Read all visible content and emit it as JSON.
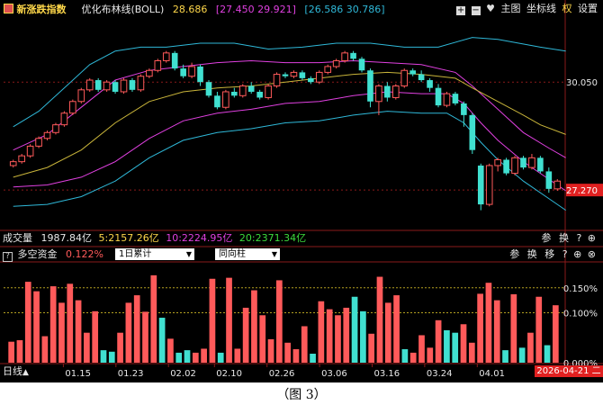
{
  "colors": {
    "up": "#ff5a5a",
    "down": "#40e0d0",
    "upper_band": "#2fb8d8",
    "mid_band": "#c8b43a",
    "lower_band": "#e040e0",
    "ma5": "#ffd84a",
    "ma10": "#e040e0",
    "ma20": "#3cdc3c",
    "dash_ref": "#b4a020",
    "grid_red": "#8a1a1a",
    "text_white": "#e8e8e8",
    "text_gray": "#c8c8c8"
  },
  "header": {
    "index_name": "新涨跌指数",
    "indicator": "优化布林线(BOLL)",
    "mid_value": "28.686",
    "upper_value": "[27.450 29.921]",
    "lower_value": "[26.586 30.786]",
    "tools": [
      "主图",
      "坐标线",
      "权",
      "设置"
    ],
    "tool_icons": [
      "plus-icon",
      "minus-icon",
      "heart-icon"
    ]
  },
  "volume_bar": {
    "label": "成交量",
    "value": "1987.84亿",
    "ma5": "5:2157.26亿",
    "ma10": "10:2224.95亿",
    "ma20": "20:2371.34亿",
    "tools": [
      "参",
      "换"
    ]
  },
  "sub_panel": {
    "title": "多空资金",
    "value": "0.122%",
    "select1": "1日累计",
    "select2": "同向柱",
    "tools": [
      "参",
      "换",
      "移"
    ],
    "y_ticks": [
      "0.150%",
      "0.100%",
      "0.000%"
    ]
  },
  "axis": {
    "period": "日线",
    "dates": [
      "01.15",
      "01.23",
      "02.02",
      "02.10",
      "02.26",
      "03.06",
      "03.16",
      "03.24",
      "04.01"
    ],
    "current_date": "2026-04-21 二",
    "y_labels": [
      "30.050",
      "27.270"
    ]
  },
  "caption": "（图 3）",
  "chart_data": [
    {
      "type": "candlestick",
      "title": "新涨跌指数 优化布林线(BOLL)",
      "ylim": [
        26.3,
        31.7
      ],
      "y_ticks": [
        30.05,
        27.27
      ],
      "candles": [
        [
          27.9,
          28.0,
          27.85,
          28.05
        ],
        [
          28.0,
          28.15,
          27.95,
          28.2
        ],
        [
          28.15,
          28.4,
          28.1,
          28.45
        ],
        [
          28.4,
          28.6,
          28.35,
          28.65
        ],
        [
          28.6,
          28.75,
          28.55,
          28.8
        ],
        [
          28.75,
          28.95,
          28.7,
          29.0
        ],
        [
          28.95,
          29.25,
          28.9,
          29.3
        ],
        [
          29.25,
          29.55,
          29.2,
          29.6
        ],
        [
          29.55,
          29.85,
          29.5,
          29.9
        ],
        [
          29.85,
          30.1,
          29.8,
          30.15
        ],
        [
          30.1,
          29.85,
          29.8,
          30.15
        ],
        [
          29.85,
          30.05,
          29.8,
          30.1
        ],
        [
          30.05,
          29.8,
          29.75,
          30.1
        ],
        [
          29.8,
          30.1,
          29.75,
          30.15
        ],
        [
          30.1,
          29.85,
          29.8,
          30.15
        ],
        [
          29.85,
          30.2,
          29.8,
          30.25
        ],
        [
          30.2,
          30.35,
          30.15,
          30.4
        ],
        [
          30.35,
          30.6,
          30.3,
          30.65
        ],
        [
          30.6,
          30.8,
          30.55,
          30.85
        ],
        [
          30.8,
          30.4,
          30.35,
          30.85
        ],
        [
          30.4,
          30.2,
          30.15,
          30.5
        ],
        [
          30.2,
          30.45,
          30.15,
          30.55
        ],
        [
          30.45,
          30.05,
          29.95,
          30.5
        ],
        [
          30.05,
          29.7,
          29.65,
          30.1
        ],
        [
          29.7,
          29.4,
          29.35,
          29.8
        ],
        [
          29.4,
          29.8,
          29.35,
          29.85
        ],
        [
          29.8,
          29.7,
          29.65,
          29.9
        ],
        [
          29.7,
          29.95,
          29.65,
          30.0
        ],
        [
          29.95,
          29.8,
          29.75,
          30.05
        ],
        [
          29.8,
          29.65,
          29.6,
          29.85
        ],
        [
          29.65,
          29.95,
          29.6,
          30.0
        ],
        [
          29.95,
          30.25,
          29.9,
          30.3
        ],
        [
          30.25,
          30.2,
          30.15,
          30.3
        ],
        [
          30.2,
          30.3,
          30.15,
          30.35
        ],
        [
          30.3,
          30.15,
          30.1,
          30.35
        ],
        [
          30.15,
          30.05,
          30.0,
          30.2
        ],
        [
          30.05,
          30.3,
          30.0,
          30.35
        ],
        [
          30.3,
          30.45,
          30.25,
          30.5
        ],
        [
          30.45,
          30.6,
          30.4,
          30.65
        ],
        [
          30.6,
          30.8,
          30.55,
          30.85
        ],
        [
          30.8,
          30.65,
          30.6,
          30.85
        ],
        [
          30.65,
          30.35,
          30.3,
          30.7
        ],
        [
          30.35,
          29.55,
          29.4,
          30.4
        ],
        [
          29.55,
          29.95,
          29.2,
          30.0
        ],
        [
          29.95,
          29.65,
          29.55,
          30.05
        ],
        [
          29.65,
          29.95,
          29.6,
          30.0
        ],
        [
          29.95,
          30.35,
          29.9,
          30.4
        ],
        [
          30.35,
          30.25,
          30.2,
          30.4
        ],
        [
          30.25,
          30.1,
          30.05,
          30.35
        ],
        [
          30.1,
          29.9,
          29.8,
          30.15
        ],
        [
          29.9,
          29.45,
          29.4,
          30.0
        ],
        [
          29.45,
          29.75,
          29.4,
          29.8
        ],
        [
          29.75,
          29.5,
          29.45,
          29.8
        ],
        [
          29.5,
          29.2,
          28.9,
          29.55
        ],
        [
          29.2,
          28.3,
          28.2,
          29.25
        ],
        [
          27.9,
          26.9,
          26.75,
          27.95
        ],
        [
          26.9,
          27.9,
          26.85,
          27.95
        ],
        [
          27.9,
          28.05,
          27.75,
          28.1
        ],
        [
          28.05,
          27.7,
          27.65,
          28.1
        ],
        [
          27.7,
          28.1,
          27.65,
          28.15
        ],
        [
          28.1,
          27.85,
          27.8,
          28.15
        ],
        [
          27.85,
          28.1,
          27.8,
          28.2
        ],
        [
          28.1,
          27.75,
          27.7,
          28.15
        ],
        [
          27.75,
          27.3,
          27.2,
          27.85
        ],
        [
          27.3,
          27.5,
          27.25,
          27.55
        ]
      ],
      "boll_upper": [
        [
          0,
          28.9
        ],
        [
          3,
          29.3
        ],
        [
          6,
          29.9
        ],
        [
          9,
          30.5
        ],
        [
          12,
          30.85
        ],
        [
          15,
          30.95
        ],
        [
          18,
          30.95
        ],
        [
          22,
          31.05
        ],
        [
          26,
          31.05
        ],
        [
          30,
          30.9
        ],
        [
          34,
          30.95
        ],
        [
          38,
          31.05
        ],
        [
          42,
          31.05
        ],
        [
          46,
          30.95
        ],
        [
          50,
          30.95
        ],
        [
          54,
          31.2
        ],
        [
          57,
          31.15
        ],
        [
          62,
          30.95
        ],
        [
          65,
          30.85
        ]
      ],
      "boll_mid": [
        [
          0,
          27.6
        ],
        [
          4,
          27.85
        ],
        [
          8,
          28.3
        ],
        [
          12,
          29.0
        ],
        [
          16,
          29.55
        ],
        [
          20,
          29.8
        ],
        [
          24,
          29.9
        ],
        [
          28,
          29.95
        ],
        [
          32,
          30.05
        ],
        [
          36,
          30.15
        ],
        [
          40,
          30.25
        ],
        [
          44,
          30.3
        ],
        [
          48,
          30.25
        ],
        [
          52,
          30.15
        ],
        [
          54,
          29.9
        ],
        [
          57,
          29.55
        ],
        [
          60,
          29.2
        ],
        [
          62,
          28.95
        ],
        [
          65,
          28.7
        ]
      ],
      "boll_lower": [
        [
          0,
          27.35
        ],
        [
          4,
          27.4
        ],
        [
          8,
          27.6
        ],
        [
          12,
          28.0
        ],
        [
          16,
          28.6
        ],
        [
          20,
          29.05
        ],
        [
          24,
          29.25
        ],
        [
          28,
          29.35
        ],
        [
          32,
          29.5
        ],
        [
          36,
          29.55
        ],
        [
          40,
          29.7
        ],
        [
          44,
          29.8
        ],
        [
          48,
          29.75
        ],
        [
          51,
          29.75
        ],
        [
          53,
          29.5
        ],
        [
          55,
          29.0
        ],
        [
          57,
          28.55
        ],
        [
          60,
          28.0
        ],
        [
          63,
          27.55
        ],
        [
          65,
          27.25
        ]
      ],
      "boll_inner_upper": [
        [
          0,
          28.3
        ],
        [
          4,
          28.7
        ],
        [
          8,
          29.4
        ],
        [
          12,
          30.1
        ],
        [
          16,
          30.35
        ],
        [
          20,
          30.45
        ],
        [
          24,
          30.55
        ],
        [
          28,
          30.6
        ],
        [
          32,
          30.55
        ],
        [
          36,
          30.55
        ],
        [
          40,
          30.6
        ],
        [
          44,
          30.55
        ],
        [
          48,
          30.5
        ],
        [
          52,
          30.3
        ],
        [
          54,
          29.95
        ],
        [
          57,
          29.35
        ],
        [
          60,
          28.75
        ],
        [
          63,
          28.35
        ],
        [
          65,
          28.1
        ]
      ]
    },
    {
      "type": "bar",
      "title": "多空资金",
      "ylim": [
        0.0,
        0.2
      ],
      "y_ticks": [
        0.15,
        0.1,
        0.0
      ],
      "values": [
        0.042,
        0.045,
        0.162,
        0.143,
        0.053,
        0.153,
        0.12,
        0.158,
        0.125,
        0.06,
        0.103,
        0.025,
        0.022,
        0.06,
        0.12,
        0.135,
        0.102,
        0.175,
        0.09,
        0.048,
        0.02,
        0.025,
        0.02,
        0.028,
        0.168,
        0.02,
        0.17,
        0.028,
        0.11,
        0.145,
        0.095,
        0.047,
        0.165,
        0.04,
        0.027,
        0.073,
        0.018,
        0.123,
        0.107,
        0.095,
        0.11,
        0.132,
        0.103,
        0.058,
        0.172,
        0.12,
        0.135,
        0.027,
        0.02,
        0.055,
        0.03,
        0.085,
        0.065,
        0.06,
        0.077,
        0.04,
        0.138,
        0.16,
        0.125,
        0.025,
        0.137,
        0.03,
        0.06,
        0.132,
        0.035,
        0.115
      ],
      "directions": [
        "up",
        "up",
        "up",
        "up",
        "up",
        "up",
        "up",
        "up",
        "up",
        "up",
        "up",
        "down",
        "down",
        "up",
        "up",
        "up",
        "up",
        "up",
        "down",
        "up",
        "down",
        "down",
        "up",
        "up",
        "up",
        "down",
        "up",
        "up",
        "up",
        "up",
        "up",
        "up",
        "up",
        "up",
        "up",
        "up",
        "down",
        "up",
        "up",
        "up",
        "up",
        "down",
        "down",
        "up",
        "up",
        "up",
        "up",
        "down",
        "up",
        "up",
        "up",
        "up",
        "down",
        "down",
        "up",
        "up",
        "up",
        "up",
        "up",
        "down",
        "up",
        "down",
        "up",
        "up",
        "down",
        "up"
      ]
    }
  ]
}
